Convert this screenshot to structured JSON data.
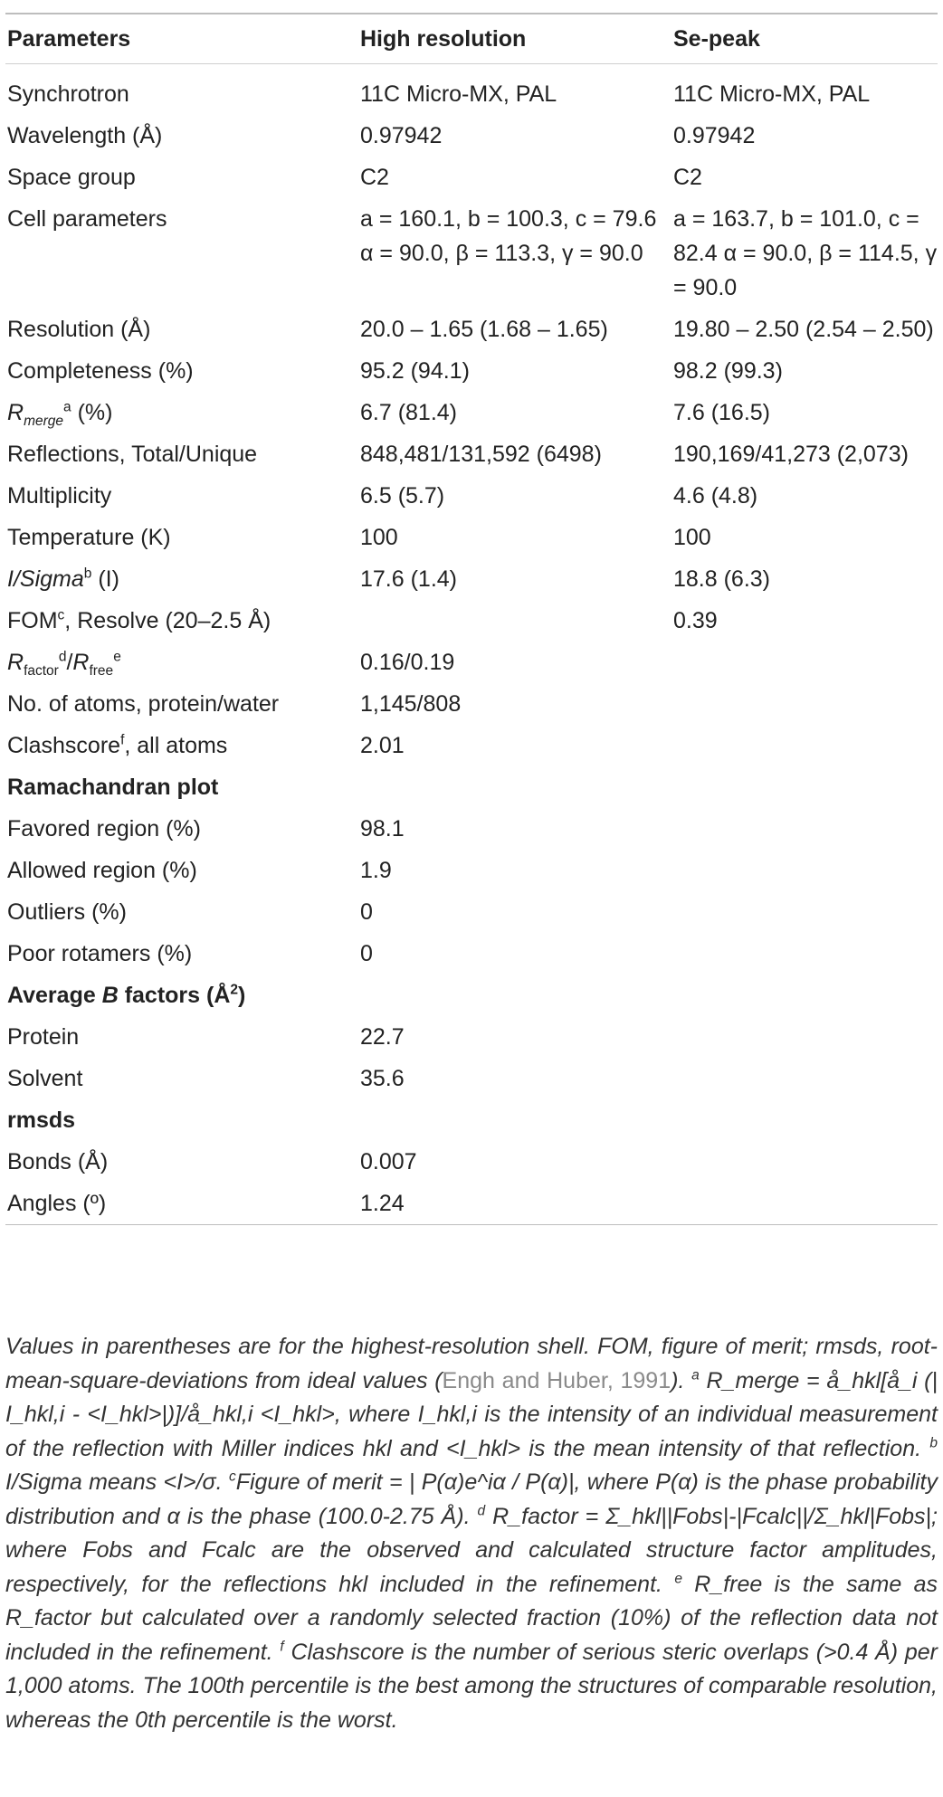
{
  "header": {
    "param": "Parameters",
    "high": "High resolution",
    "se": "Se-peak"
  },
  "rows": [
    {
      "param": "Synchrotron",
      "high": "11C Micro-MX, PAL",
      "se": "11C Micro-MX, PAL"
    },
    {
      "param": "Wavelength (Å)",
      "high": "0.97942",
      "se": "0.97942"
    },
    {
      "param": "Space group",
      "high": "C2",
      "se": "C2"
    },
    {
      "param": "Cell parameters",
      "high": "a = 160.1, b = 100.3, c = 79.6 α = 90.0, β = 113.3, γ = 90.0",
      "se": "a = 163.7, b = 101.0, c = 82.4 α = 90.0, β = 114.5, γ = 90.0"
    },
    {
      "param": "Resolution (Å)",
      "high": "20.0 – 1.65 (1.68 – 1.65)",
      "se": "19.80 – 2.50 (2.54 – 2.50)"
    },
    {
      "param": "Completeness (%)",
      "high": "95.2 (94.1)",
      "se": "98.2 (99.3)"
    },
    {
      "param_base": "R",
      "param_sub": "merge",
      "param_sup": "a",
      "param_rest": " (%)",
      "high": "6.7 (81.4)",
      "se": "7.6 (16.5)"
    },
    {
      "param": "Reflections, Total/Unique",
      "high": "848,481/131,592 (6498)",
      "se": "190,169/41,273 (2,073)"
    },
    {
      "param": "Multiplicity",
      "high": "6.5 (5.7)",
      "se": "4.6 (4.8)"
    },
    {
      "param": "Temperature (K)",
      "high": "100",
      "se": "100"
    },
    {
      "param_base": "I/Sigma",
      "param_sup": "b",
      "param_rest": " (I)",
      "high": "17.6 (1.4)",
      "se": "18.8 (6.3)"
    },
    {
      "param_base": "FOM",
      "param_sup": "c",
      "param_rest": ", Resolve (20–2.5 Å)",
      "high": "",
      "se": "0.39"
    },
    {
      "param": "R_factor^d/R_free^e",
      "high": "0.16/0.19",
      "se": ""
    },
    {
      "param": "No. of atoms, protein/water",
      "high": "1,145/808",
      "se": ""
    },
    {
      "param_base": "Clashscore",
      "param_sup": "f",
      "param_rest": ", all atoms",
      "high": "2.01",
      "se": ""
    }
  ],
  "rama": {
    "title": "Ramachandran plot",
    "rows": [
      {
        "param": "Favored region (%)",
        "high": "98.1"
      },
      {
        "param": "Allowed region (%)",
        "high": "1.9"
      },
      {
        "param": "Outliers (%)",
        "high": "0"
      },
      {
        "param": "Poor rotamers (%)",
        "high": "0"
      }
    ]
  },
  "bfactors": {
    "title_pre": "Average ",
    "title_b": "B",
    "title_post": " factors (Å",
    "title_sup": "2",
    "title_end": ")",
    "rows": [
      {
        "param": "Protein",
        "high": "22.7"
      },
      {
        "param": "Solvent",
        "high": "35.6"
      }
    ]
  },
  "rmsds": {
    "title": "rmsds",
    "rows": [
      {
        "param": "Bonds (Å)",
        "high": "0.007"
      },
      {
        "param": "Angles (º)",
        "high": "1.24"
      }
    ]
  },
  "footnote": {
    "p1": "Values in parentheses are for the highest-resolution shell. FOM, figure of merit; rmsds, root-mean-square-deviations from ideal values (",
    "ref": "Engh and Huber, 1991",
    "p2": "). ",
    "a": "R_merge = å_hkl[å_i (| I_hkl,i - <I_hkl>|)]/å_hkl,i <I_hkl>, where I_hkl,i is the intensity of an individual measurement of the reflection with Miller indices hkl and <I_hkl> is the mean intensity of that reflection.",
    "b": "I/Sigma means <I>/σ.",
    "c": "Figure of merit = | P(α)e^iα / P(α)|, where P(α) is the phase probability distribution and α is the phase (100.0-2.75 Å).",
    "d": "R_factor = Σ_hkl||Fobs|-|Fcalc||/Σ_hkl|Fobs|; where Fobs and Fcalc are the observed and calculated structure factor amplitudes, respectively, for the reflections hkl included in the refinement.",
    "e": "R_free is the same as R_factor but calculated over a randomly selected fraction (10%) of the reflection data not included in the refinement.",
    "f": "Clashscore is the number of serious steric overlaps (>0.4 Å) per 1,000 atoms. The 100th percentile is the best among the structures of comparable resolution, whereas the 0th percentile is the worst."
  }
}
